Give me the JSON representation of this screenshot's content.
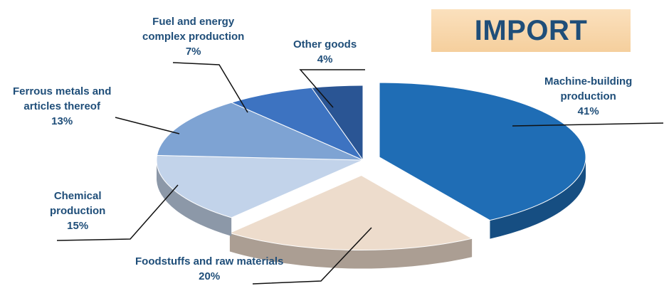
{
  "chart_data": {
    "type": "pie",
    "title": "IMPORT",
    "slices": [
      {
        "label_lines": [
          "Machine-building",
          "production"
        ],
        "percent_text": "41%",
        "value": 41,
        "color": "#1f6db5"
      },
      {
        "label_lines": [
          "Foodstuffs and raw materials"
        ],
        "percent_text": "20%",
        "value": 20,
        "color": "#eddccc"
      },
      {
        "label_lines": [
          "Chemical",
          "production"
        ],
        "percent_text": "15%",
        "value": 15,
        "color": "#c2d3ea"
      },
      {
        "label_lines": [
          "Ferrous metals and",
          "articles thereof"
        ],
        "percent_text": "13%",
        "value": 13,
        "color": "#7ea3d3"
      },
      {
        "label_lines": [
          "Fuel and energy",
          "complex production"
        ],
        "percent_text": "7%",
        "value": 7,
        "color": "#3d73c1"
      },
      {
        "label_lines": [
          "Other goods"
        ],
        "percent_text": "4%",
        "value": 4,
        "color": "#2a5594"
      }
    ]
  }
}
